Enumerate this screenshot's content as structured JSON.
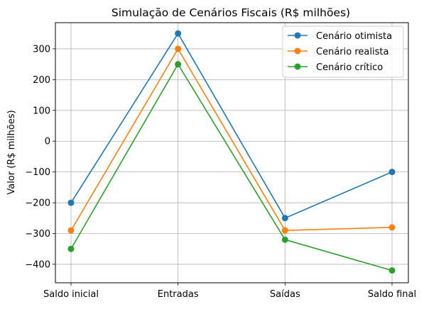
{
  "chart_data": {
    "type": "line",
    "title": "Simulação de Cenários Fiscais (R$ milhões)",
    "xlabel": "",
    "ylabel": "Valor (R$ milhões)",
    "categories": [
      "Saldo inicial",
      "Entradas",
      "Saídas",
      "Saldo final"
    ],
    "ylim": [
      -460,
      385
    ],
    "yticks": [
      -400,
      -300,
      -200,
      -100,
      0,
      100,
      200,
      300
    ],
    "ytick_labels": [
      "−400",
      "−300",
      "−200",
      "−100",
      "0",
      "100",
      "200",
      "300"
    ],
    "grid": true,
    "legend_position": "top-right",
    "series": [
      {
        "name": "Cenário otimista",
        "color": "#1f77b4",
        "values": [
          -200,
          350,
          -250,
          -100
        ]
      },
      {
        "name": "Cenário realista",
        "color": "#ff7f0e",
        "values": [
          -290,
          300,
          -290,
          -280
        ]
      },
      {
        "name": "Cenário crítico",
        "color": "#2ca02c",
        "values": [
          -350,
          250,
          -320,
          -420
        ]
      }
    ]
  }
}
